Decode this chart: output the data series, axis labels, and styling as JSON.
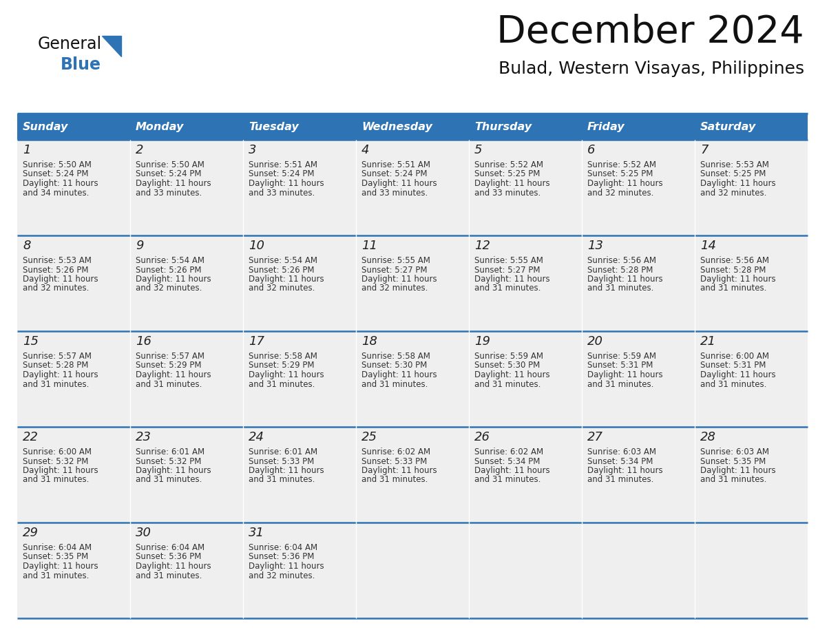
{
  "title": "December 2024",
  "subtitle": "Bulad, Western Visayas, Philippines",
  "days_of_week": [
    "Sunday",
    "Monday",
    "Tuesday",
    "Wednesday",
    "Thursday",
    "Friday",
    "Saturday"
  ],
  "header_bg": "#2E74B5",
  "header_text": "#FFFFFF",
  "cell_bg_light": "#EFEFEF",
  "cell_bg_white": "#FFFFFF",
  "border_color": "#2E74B5",
  "separator_color": "#BBBBBB",
  "day_number_color": "#222222",
  "content_color": "#333333",
  "title_color": "#111111",
  "logo_general_color": "#111111",
  "logo_blue_color": "#2E74B5",
  "logo_triangle_color": "#2E74B5",
  "calendar_data": [
    [
      {
        "day": 1,
        "sunrise": "5:50 AM",
        "sunset": "5:24 PM",
        "daylight": "11 hours and 34 minutes."
      },
      {
        "day": 2,
        "sunrise": "5:50 AM",
        "sunset": "5:24 PM",
        "daylight": "11 hours and 33 minutes."
      },
      {
        "day": 3,
        "sunrise": "5:51 AM",
        "sunset": "5:24 PM",
        "daylight": "11 hours and 33 minutes."
      },
      {
        "day": 4,
        "sunrise": "5:51 AM",
        "sunset": "5:24 PM",
        "daylight": "11 hours and 33 minutes."
      },
      {
        "day": 5,
        "sunrise": "5:52 AM",
        "sunset": "5:25 PM",
        "daylight": "11 hours and 33 minutes."
      },
      {
        "day": 6,
        "sunrise": "5:52 AM",
        "sunset": "5:25 PM",
        "daylight": "11 hours and 32 minutes."
      },
      {
        "day": 7,
        "sunrise": "5:53 AM",
        "sunset": "5:25 PM",
        "daylight": "11 hours and 32 minutes."
      }
    ],
    [
      {
        "day": 8,
        "sunrise": "5:53 AM",
        "sunset": "5:26 PM",
        "daylight": "11 hours and 32 minutes."
      },
      {
        "day": 9,
        "sunrise": "5:54 AM",
        "sunset": "5:26 PM",
        "daylight": "11 hours and 32 minutes."
      },
      {
        "day": 10,
        "sunrise": "5:54 AM",
        "sunset": "5:26 PM",
        "daylight": "11 hours and 32 minutes."
      },
      {
        "day": 11,
        "sunrise": "5:55 AM",
        "sunset": "5:27 PM",
        "daylight": "11 hours and 32 minutes."
      },
      {
        "day": 12,
        "sunrise": "5:55 AM",
        "sunset": "5:27 PM",
        "daylight": "11 hours and 31 minutes."
      },
      {
        "day": 13,
        "sunrise": "5:56 AM",
        "sunset": "5:28 PM",
        "daylight": "11 hours and 31 minutes."
      },
      {
        "day": 14,
        "sunrise": "5:56 AM",
        "sunset": "5:28 PM",
        "daylight": "11 hours and 31 minutes."
      }
    ],
    [
      {
        "day": 15,
        "sunrise": "5:57 AM",
        "sunset": "5:28 PM",
        "daylight": "11 hours and 31 minutes."
      },
      {
        "day": 16,
        "sunrise": "5:57 AM",
        "sunset": "5:29 PM",
        "daylight": "11 hours and 31 minutes."
      },
      {
        "day": 17,
        "sunrise": "5:58 AM",
        "sunset": "5:29 PM",
        "daylight": "11 hours and 31 minutes."
      },
      {
        "day": 18,
        "sunrise": "5:58 AM",
        "sunset": "5:30 PM",
        "daylight": "11 hours and 31 minutes."
      },
      {
        "day": 19,
        "sunrise": "5:59 AM",
        "sunset": "5:30 PM",
        "daylight": "11 hours and 31 minutes."
      },
      {
        "day": 20,
        "sunrise": "5:59 AM",
        "sunset": "5:31 PM",
        "daylight": "11 hours and 31 minutes."
      },
      {
        "day": 21,
        "sunrise": "6:00 AM",
        "sunset": "5:31 PM",
        "daylight": "11 hours and 31 minutes."
      }
    ],
    [
      {
        "day": 22,
        "sunrise": "6:00 AM",
        "sunset": "5:32 PM",
        "daylight": "11 hours and 31 minutes."
      },
      {
        "day": 23,
        "sunrise": "6:01 AM",
        "sunset": "5:32 PM",
        "daylight": "11 hours and 31 minutes."
      },
      {
        "day": 24,
        "sunrise": "6:01 AM",
        "sunset": "5:33 PM",
        "daylight": "11 hours and 31 minutes."
      },
      {
        "day": 25,
        "sunrise": "6:02 AM",
        "sunset": "5:33 PM",
        "daylight": "11 hours and 31 minutes."
      },
      {
        "day": 26,
        "sunrise": "6:02 AM",
        "sunset": "5:34 PM",
        "daylight": "11 hours and 31 minutes."
      },
      {
        "day": 27,
        "sunrise": "6:03 AM",
        "sunset": "5:34 PM",
        "daylight": "11 hours and 31 minutes."
      },
      {
        "day": 28,
        "sunrise": "6:03 AM",
        "sunset": "5:35 PM",
        "daylight": "11 hours and 31 minutes."
      }
    ],
    [
      {
        "day": 29,
        "sunrise": "6:04 AM",
        "sunset": "5:35 PM",
        "daylight": "11 hours and 31 minutes."
      },
      {
        "day": 30,
        "sunrise": "6:04 AM",
        "sunset": "5:36 PM",
        "daylight": "11 hours and 31 minutes."
      },
      {
        "day": 31,
        "sunrise": "6:04 AM",
        "sunset": "5:36 PM",
        "daylight": "11 hours and 32 minutes."
      },
      null,
      null,
      null,
      null
    ]
  ]
}
